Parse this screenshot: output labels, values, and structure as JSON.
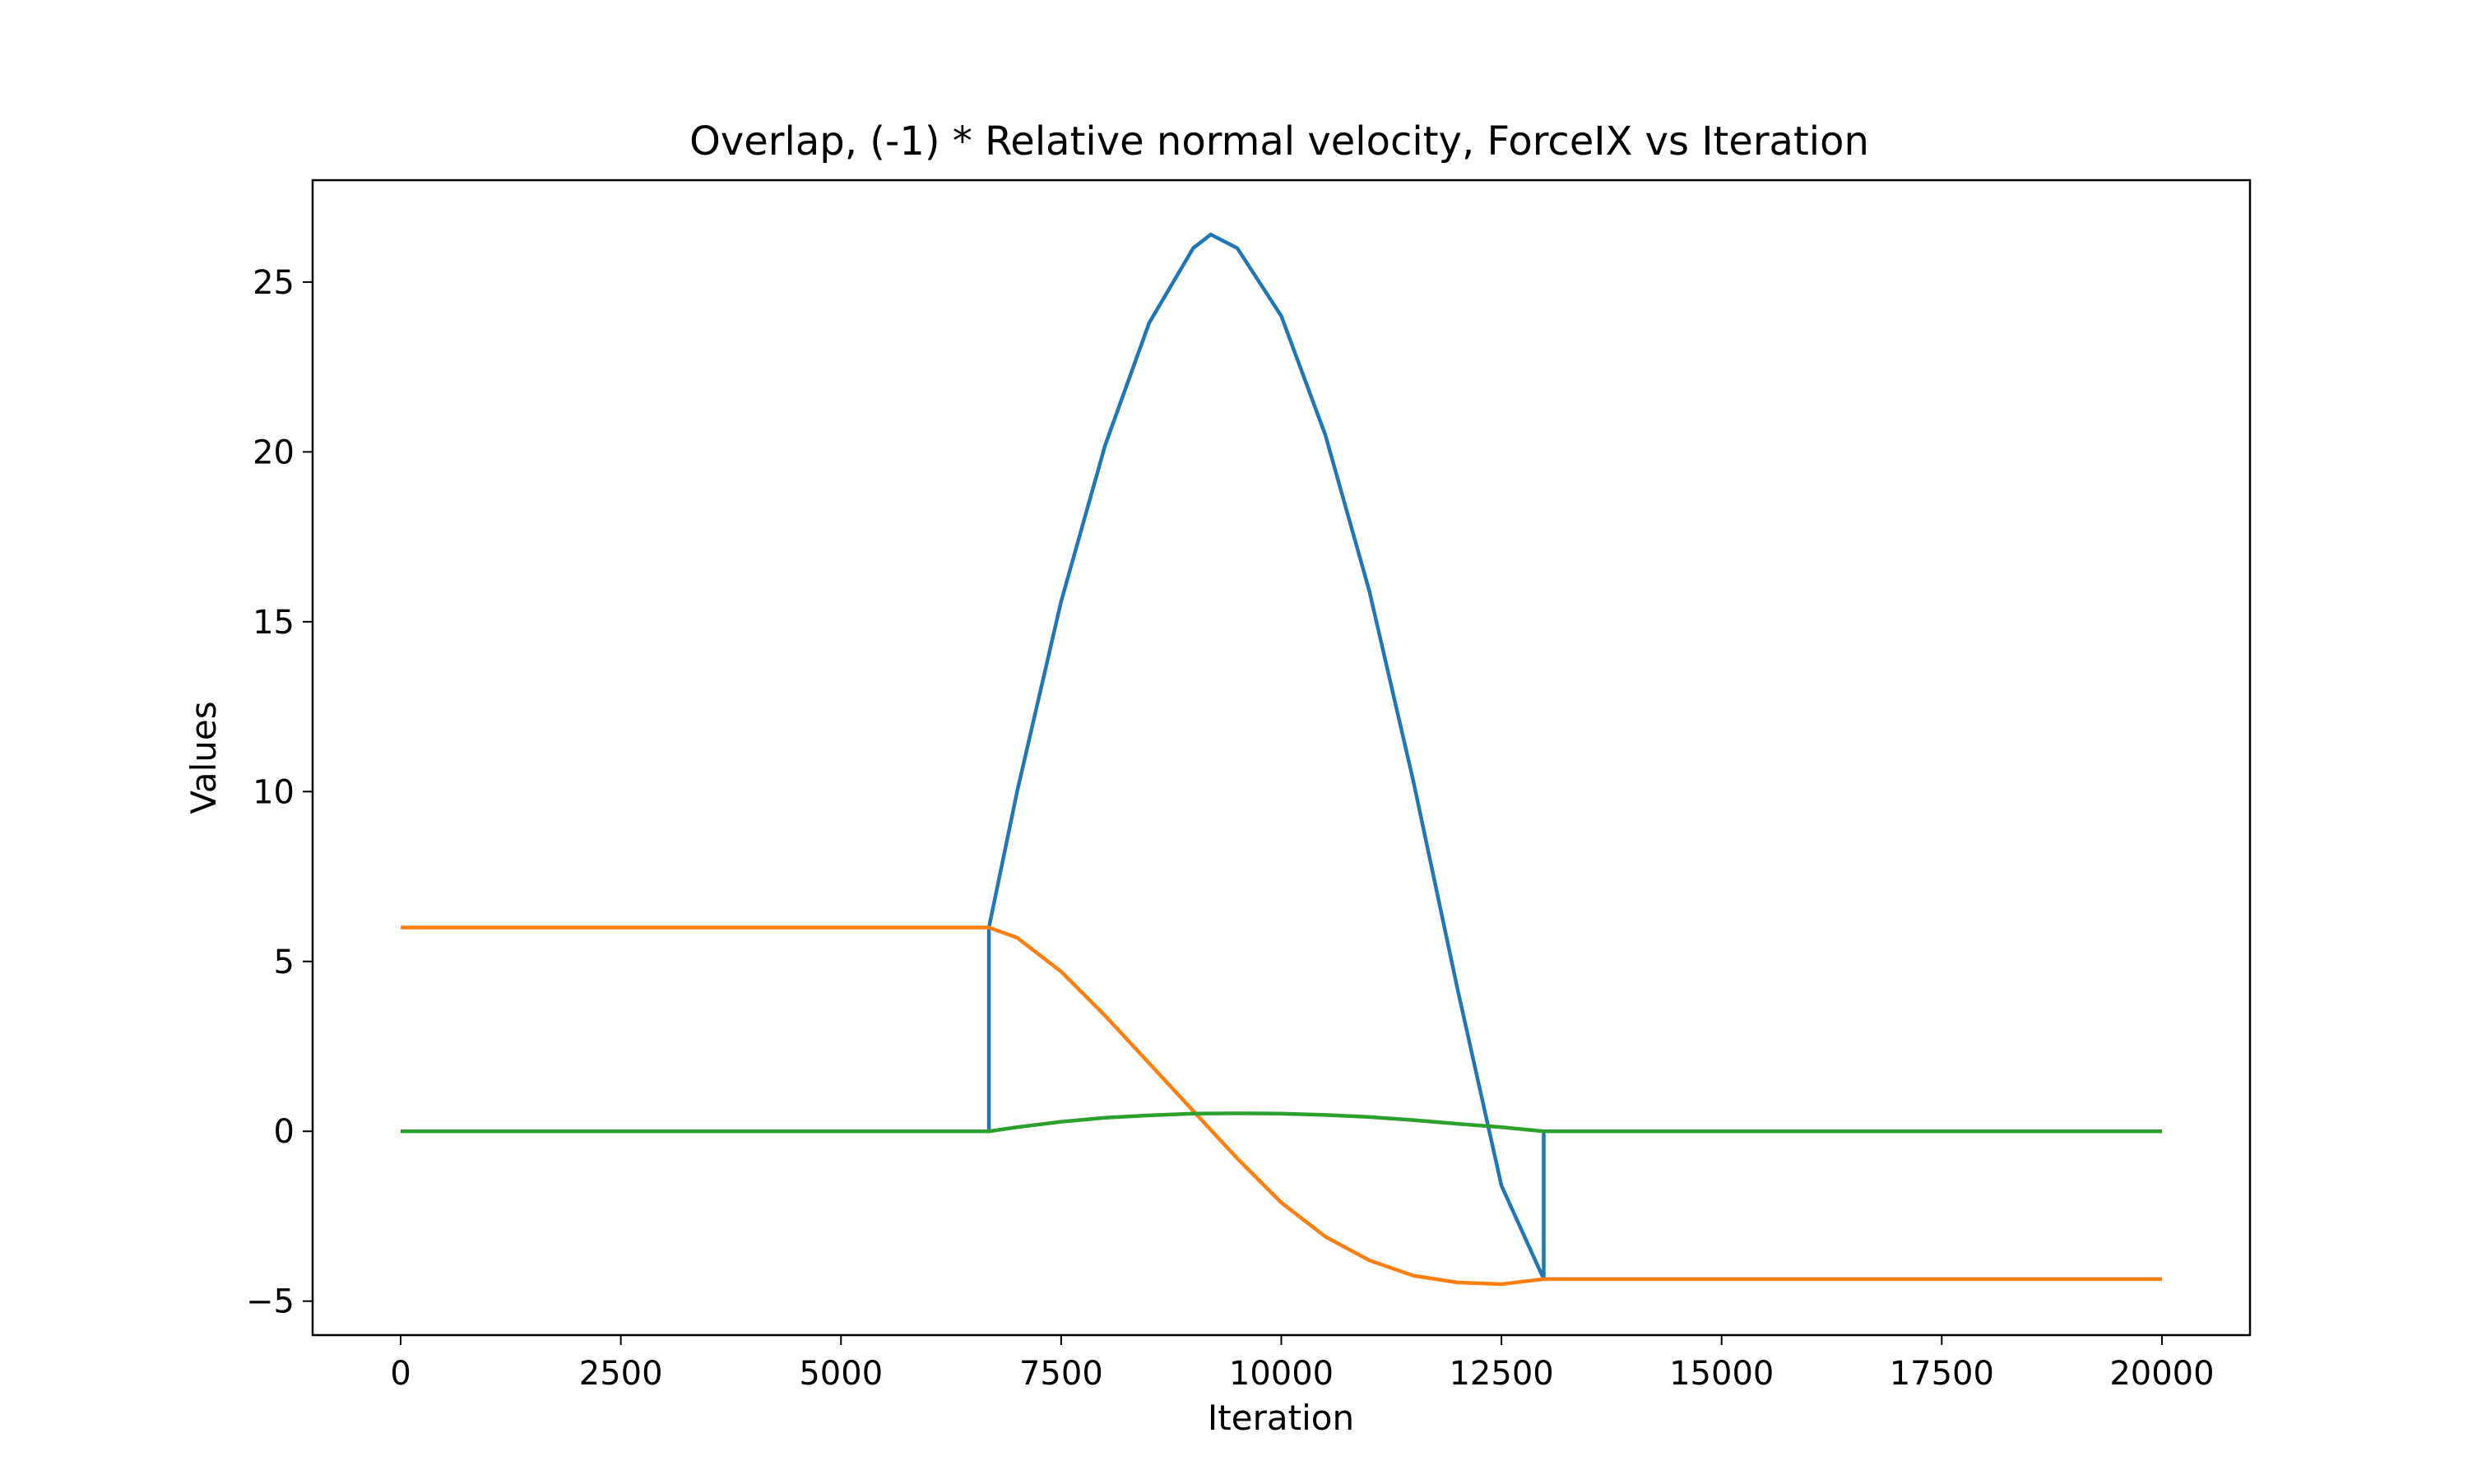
{
  "chart_data": {
    "type": "line",
    "title": "Overlap, (-1) * Relative normal velocity, ForceIX vs Iteration",
    "xlabel": "Iteration",
    "ylabel": "Values",
    "xlim": [
      -1000,
      21000
    ],
    "ylim": [
      -6,
      28
    ],
    "grid": false,
    "legend": "none",
    "xticks": [
      0,
      2500,
      5000,
      7500,
      10000,
      12500,
      15000,
      17500,
      20000
    ],
    "xtick_labels": [
      "0",
      "2500",
      "5000",
      "7500",
      "10000",
      "12500",
      "15000",
      "17500",
      "20000"
    ],
    "yticks": [
      -5,
      0,
      5,
      10,
      15,
      20,
      25
    ],
    "ytick_labels": [
      "−5",
      "0",
      "5",
      "10",
      "15",
      "20",
      "25"
    ],
    "series": [
      {
        "color": "#1f77b4",
        "points": [
          [
            0,
            0
          ],
          [
            6680,
            0
          ],
          [
            6680,
            6.0
          ],
          [
            7000,
            10.0
          ],
          [
            7500,
            15.6
          ],
          [
            8000,
            20.2
          ],
          [
            8500,
            23.8
          ],
          [
            9000,
            26.0
          ],
          [
            9200,
            26.4
          ],
          [
            9500,
            26.0
          ],
          [
            10000,
            24.0
          ],
          [
            10500,
            20.5
          ],
          [
            11000,
            15.9
          ],
          [
            11500,
            10.3
          ],
          [
            12000,
            4.2
          ],
          [
            12500,
            -1.6
          ],
          [
            12980,
            -4.35
          ],
          [
            12980,
            0
          ],
          [
            20000,
            0
          ]
        ]
      },
      {
        "color": "#ff7f0e",
        "points": [
          [
            0,
            6.0
          ],
          [
            6680,
            6.0
          ],
          [
            7000,
            5.7
          ],
          [
            7500,
            4.7
          ],
          [
            8000,
            3.4
          ],
          [
            8500,
            2.0
          ],
          [
            9000,
            0.6
          ],
          [
            9500,
            -0.8
          ],
          [
            10000,
            -2.1
          ],
          [
            10500,
            -3.1
          ],
          [
            11000,
            -3.8
          ],
          [
            11500,
            -4.25
          ],
          [
            12000,
            -4.45
          ],
          [
            12500,
            -4.5
          ],
          [
            12980,
            -4.35
          ],
          [
            20000,
            -4.35
          ]
        ]
      },
      {
        "color": "#2ca02c",
        "points": [
          [
            0,
            0
          ],
          [
            6680,
            0
          ],
          [
            7000,
            0.12
          ],
          [
            7500,
            0.28
          ],
          [
            8000,
            0.4
          ],
          [
            8500,
            0.47
          ],
          [
            9000,
            0.52
          ],
          [
            9500,
            0.53
          ],
          [
            10000,
            0.52
          ],
          [
            10500,
            0.48
          ],
          [
            11000,
            0.42
          ],
          [
            11500,
            0.33
          ],
          [
            12000,
            0.22
          ],
          [
            12500,
            0.12
          ],
          [
            12980,
            0
          ],
          [
            20000,
            0
          ]
        ]
      }
    ]
  }
}
